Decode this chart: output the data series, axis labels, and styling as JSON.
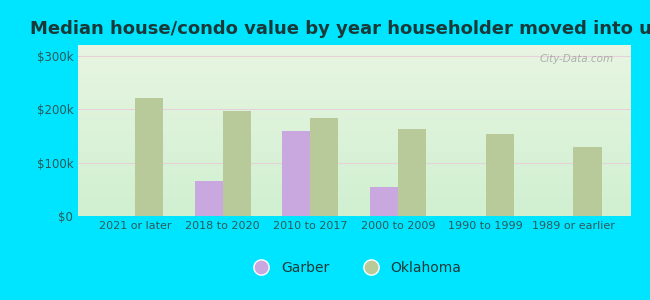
{
  "title": "Median house/condo value by year householder moved into unit",
  "categories": [
    "2021 or later",
    "2018 to 2020",
    "2010 to 2017",
    "2000 to 2009",
    "1990 to 1999",
    "1989 or earlier"
  ],
  "garber": [
    null,
    65000,
    160000,
    55000,
    null,
    null
  ],
  "oklahoma": [
    220000,
    197000,
    183000,
    163000,
    153000,
    130000
  ],
  "garber_color": "#c9a8e0",
  "oklahoma_color": "#b8c99a",
  "bg_outer": "#00e5ff",
  "bg_inner_top": "#e8f5e2",
  "bg_inner_bottom": "#d8f0d0",
  "title_fontsize": 13,
  "ylabel_ticks": [
    0,
    100000,
    200000,
    300000
  ],
  "ylabel_labels": [
    "$0",
    "$100k",
    "$200k",
    "$300k"
  ],
  "ylim": [
    0,
    320000
  ],
  "bar_width": 0.32,
  "watermark": "City-Data.com",
  "legend_garber": "Garber",
  "legend_oklahoma": "Oklahoma",
  "grid_color": "#e8d0d8",
  "title_color": "#1a3a3a"
}
